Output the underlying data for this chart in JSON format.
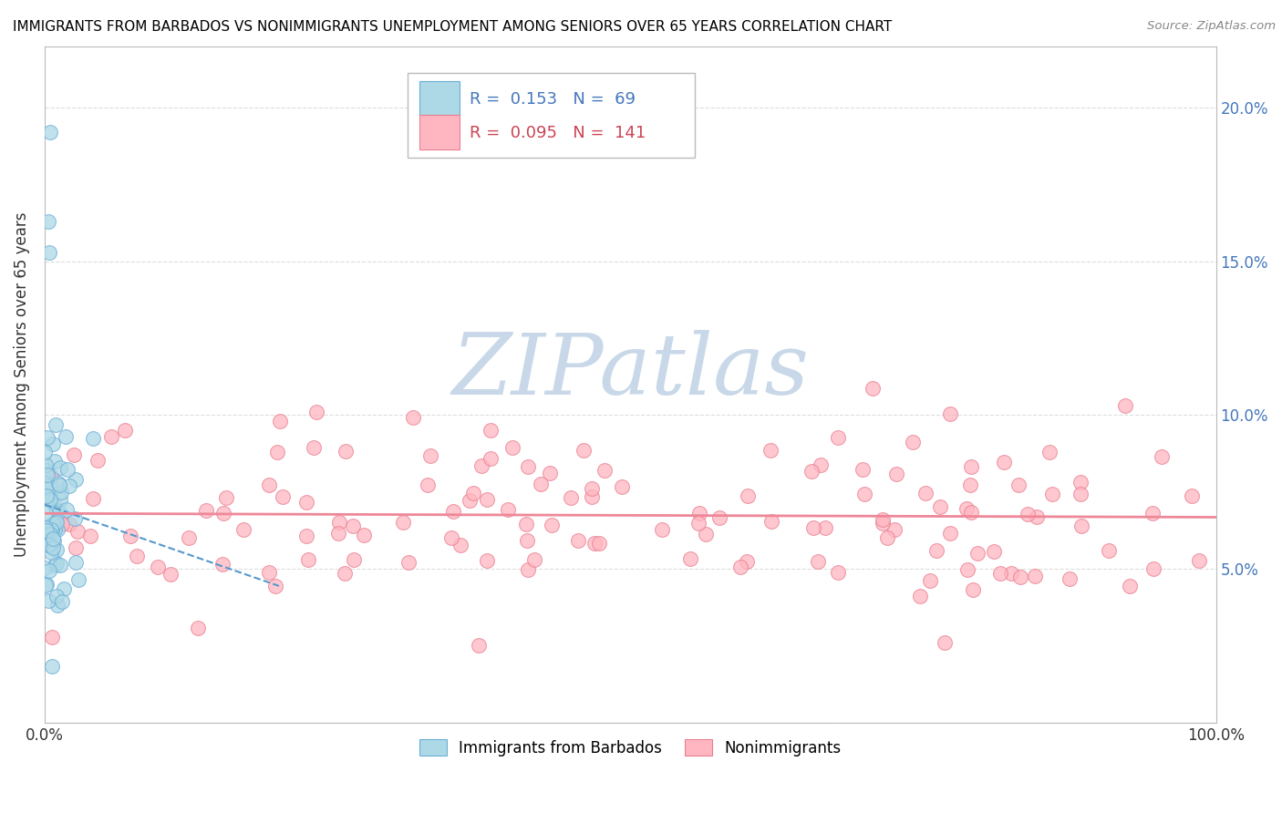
{
  "title": "IMMIGRANTS FROM BARBADOS VS NONIMMIGRANTS UNEMPLOYMENT AMONG SENIORS OVER 65 YEARS CORRELATION CHART",
  "source": "Source: ZipAtlas.com",
  "ylabel": "Unemployment Among Seniors over 65 years",
  "legend_label_1": "Immigrants from Barbados",
  "legend_label_2": "Nonimmigrants",
  "legend_R1": "0.153",
  "legend_N1": "69",
  "legend_R2": "0.095",
  "legend_N2": "141",
  "color_blue_fill": "#ADD8E6",
  "color_blue_edge": "#6aaed6",
  "color_pink_fill": "#FFB6C1",
  "color_pink_edge": "#E88090",
  "color_blue_trend": "#5599CC",
  "color_pink_trend": "#EE8899",
  "color_blue_text": "#4477BB",
  "color_pink_text": "#CC4455",
  "color_black_text": "#333333",
  "xlim": [
    0.0,
    1.0
  ],
  "ylim": [
    0.0,
    0.22
  ],
  "yticks": [
    0.0,
    0.05,
    0.1,
    0.15,
    0.2
  ],
  "ytick_labels": [
    "",
    "5.0%",
    "10.0%",
    "15.0%",
    "20.0%"
  ],
  "xticks": [
    0.0,
    0.25,
    0.5,
    0.75,
    1.0
  ],
  "xtick_labels": [
    "0.0%",
    "",
    "",
    "",
    "100.0%"
  ],
  "background_color": "#ffffff",
  "grid_color": "#DDDDDD",
  "watermark_color": "#C8D8E8",
  "seed": 12345
}
